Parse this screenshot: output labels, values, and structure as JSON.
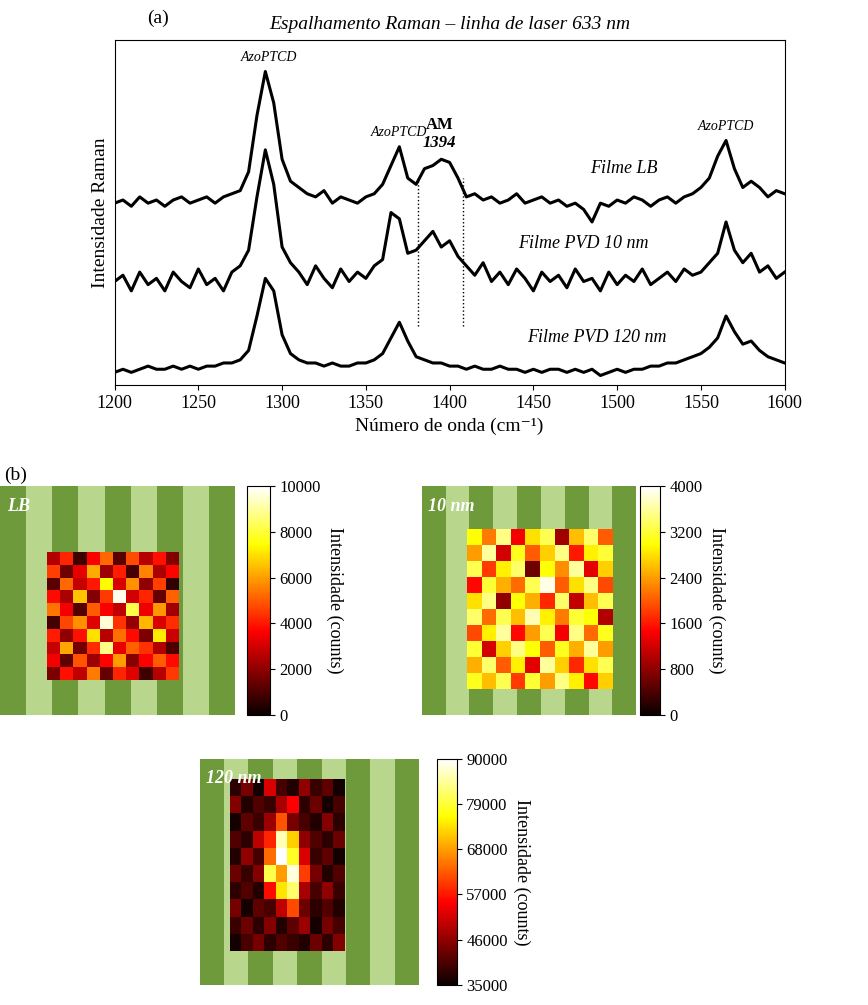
{
  "chart_data": [
    {
      "type": "line",
      "panel": "(a)",
      "title": "Espalhamento Raman – linha de laser 633 nm",
      "x_label": "Número de onda (cm⁻¹)",
      "y_label": "Intensidade Raman",
      "xlim": [
        1200,
        1600
      ],
      "xticks": [
        1200,
        1250,
        1300,
        1350,
        1400,
        1450,
        1500,
        1550,
        1600
      ],
      "ylim": [
        0,
        11
      ],
      "yticks": [],
      "tick_labels": "x",
      "grid": false,
      "x": [
        1200,
        1205,
        1210,
        1215,
        1220,
        1225,
        1230,
        1235,
        1240,
        1245,
        1250,
        1255,
        1260,
        1265,
        1270,
        1275,
        1280,
        1285,
        1290,
        1295,
        1300,
        1305,
        1310,
        1315,
        1320,
        1325,
        1330,
        1335,
        1340,
        1345,
        1350,
        1355,
        1360,
        1365,
        1370,
        1375,
        1380,
        1385,
        1390,
        1395,
        1400,
        1405,
        1410,
        1415,
        1420,
        1425,
        1430,
        1435,
        1440,
        1445,
        1450,
        1455,
        1460,
        1465,
        1470,
        1475,
        1480,
        1485,
        1490,
        1495,
        1500,
        1505,
        1510,
        1515,
        1520,
        1525,
        1530,
        1535,
        1540,
        1545,
        1550,
        1555,
        1560,
        1565,
        1570,
        1575,
        1580,
        1585,
        1590,
        1595,
        1600
      ],
      "series": [
        {
          "name": "Filme LB",
          "color": "#000000",
          "line_style": "solid",
          "values": [
            5.8,
            5.9,
            5.7,
            6.0,
            5.8,
            5.9,
            5.7,
            5.9,
            6.0,
            5.8,
            5.9,
            6.0,
            5.8,
            6.0,
            6.1,
            6.2,
            6.8,
            8.6,
            10.0,
            9.0,
            7.2,
            6.5,
            6.3,
            6.1,
            6.0,
            6.2,
            5.8,
            6.0,
            5.9,
            5.8,
            6.0,
            6.1,
            6.4,
            7.0,
            7.6,
            6.6,
            6.4,
            6.9,
            7.0,
            7.2,
            7.1,
            6.6,
            6.0,
            6.1,
            5.9,
            6.0,
            5.8,
            5.9,
            6.1,
            5.8,
            5.9,
            6.0,
            5.8,
            5.9,
            5.7,
            5.8,
            5.6,
            5.2,
            5.8,
            5.7,
            5.9,
            5.8,
            6.0,
            5.9,
            5.7,
            5.9,
            6.0,
            5.8,
            6.0,
            6.1,
            6.3,
            6.6,
            7.3,
            7.8,
            6.9,
            6.3,
            6.5,
            6.3,
            6.0,
            6.2,
            6.1
          ]
        },
        {
          "name": "Filme PVD 10 nm",
          "color": "#000000",
          "line_style": "solid",
          "values": [
            3.3,
            3.5,
            3.0,
            3.6,
            3.2,
            3.4,
            3.0,
            3.6,
            3.3,
            3.1,
            3.7,
            3.2,
            3.4,
            3.0,
            3.6,
            3.8,
            4.3,
            6.0,
            7.5,
            6.4,
            4.4,
            3.9,
            3.6,
            3.2,
            3.8,
            3.4,
            3.1,
            3.7,
            3.3,
            3.6,
            3.4,
            3.8,
            4.0,
            5.5,
            5.3,
            4.2,
            4.3,
            4.6,
            4.9,
            4.4,
            4.6,
            4.1,
            3.8,
            3.5,
            3.9,
            3.3,
            3.6,
            3.2,
            3.7,
            3.4,
            3.0,
            3.6,
            3.3,
            3.5,
            3.1,
            3.7,
            3.3,
            3.4,
            3.0,
            3.6,
            3.2,
            3.5,
            3.3,
            3.7,
            3.2,
            3.4,
            3.6,
            3.3,
            3.7,
            3.5,
            3.6,
            3.9,
            4.2,
            5.2,
            4.3,
            3.9,
            4.2,
            3.6,
            3.8,
            3.4,
            3.6
          ]
        },
        {
          "name": "Filme PVD 120 nm",
          "color": "#000000",
          "line_style": "solid",
          "values": [
            0.4,
            0.5,
            0.4,
            0.5,
            0.6,
            0.5,
            0.5,
            0.6,
            0.5,
            0.6,
            0.5,
            0.6,
            0.6,
            0.7,
            0.7,
            0.8,
            1.1,
            2.2,
            3.4,
            3.0,
            1.6,
            1.0,
            0.8,
            0.7,
            0.7,
            0.6,
            0.7,
            0.6,
            0.6,
            0.7,
            0.7,
            0.8,
            1.0,
            1.5,
            2.0,
            1.4,
            0.9,
            0.8,
            0.7,
            0.7,
            0.6,
            0.6,
            0.5,
            0.6,
            0.5,
            0.5,
            0.6,
            0.5,
            0.5,
            0.4,
            0.5,
            0.4,
            0.5,
            0.5,
            0.4,
            0.5,
            0.4,
            0.5,
            0.3,
            0.4,
            0.5,
            0.4,
            0.5,
            0.5,
            0.6,
            0.6,
            0.7,
            0.7,
            0.8,
            0.9,
            1.0,
            1.2,
            1.5,
            2.2,
            1.7,
            1.3,
            1.4,
            1.1,
            0.9,
            0.8,
            0.7
          ]
        }
      ],
      "annotations": [
        {
          "text": "AzoPTCD",
          "x": 1292
        },
        {
          "text": "AzoPTCD",
          "x": 1370
        },
        {
          "text": "AzoPTCD",
          "x": 1565
        },
        {
          "text": "1394",
          "x": 1394
        },
        {
          "text": "AM",
          "x": 1394
        }
      ],
      "band_lines": [
        1381,
        1408
      ]
    },
    {
      "type": "heatmap",
      "panel": "(b)",
      "title": "LB",
      "tick_labels": false,
      "cells": [
        [
          2500,
          4200,
          800,
          3600,
          5200,
          1200,
          4800,
          2600,
          3900,
          1800
        ],
        [
          4600,
          1500,
          3300,
          6200,
          2200,
          4100,
          900,
          5600,
          2400,
          3700
        ],
        [
          1200,
          5200,
          2800,
          4000,
          7400,
          3100,
          5800,
          2000,
          4600,
          600
        ],
        [
          3800,
          2400,
          6600,
          1800,
          4500,
          9800,
          3000,
          4200,
          1400,
          5100
        ],
        [
          5400,
          3500,
          1100,
          5000,
          3600,
          2700,
          8200,
          3400,
          5900,
          2300
        ],
        [
          900,
          4700,
          5800,
          3200,
          9600,
          4400,
          2100,
          6400,
          3100,
          4300
        ],
        [
          4100,
          2000,
          3900,
          7000,
          2600,
          5300,
          3800,
          1700,
          7200,
          2900
        ],
        [
          2800,
          6100,
          1600,
          4300,
          8800,
          3300,
          5100,
          4400,
          2500,
          1000
        ],
        [
          3500,
          1300,
          4900,
          2200,
          3700,
          6000,
          1900,
          3600,
          5000,
          3800
        ],
        [
          1700,
          3900,
          2700,
          5500,
          1400,
          4200,
          3200,
          800,
          2600,
          4500
        ]
      ],
      "colorbar": {
        "range": [
          0,
          10000
        ],
        "ticks": [
          0,
          2000,
          4000,
          6000,
          8000,
          10000
        ],
        "label": "Intensidade (counts)"
      }
    },
    {
      "type": "heatmap",
      "title": "10 nm",
      "tick_labels": false,
      "cells": [
        [
          3000,
          2200,
          3500,
          1400,
          2800,
          3300,
          900,
          2600,
          3400,
          2000
        ],
        [
          2400,
          3600,
          1200,
          3100,
          2000,
          2700,
          3500,
          1600,
          2900,
          3200
        ],
        [
          3300,
          1800,
          2900,
          3400,
          600,
          3000,
          2300,
          3600,
          1300,
          2700
        ],
        [
          1500,
          3200,
          2500,
          2100,
          3300,
          3900,
          2000,
          2800,
          3500,
          1900
        ],
        [
          2800,
          3500,
          800,
          3000,
          2500,
          1700,
          3400,
          1100,
          2600,
          3300
        ],
        [
          3400,
          2100,
          3300,
          2600,
          3700,
          2900,
          2200,
          3200,
          3000,
          1000
        ],
        [
          1900,
          2900,
          3600,
          1500,
          2400,
          3300,
          1400,
          3500,
          2100,
          3100
        ],
        [
          3200,
          1200,
          2700,
          3500,
          3000,
          2000,
          3100,
          2500,
          3600,
          2400
        ],
        [
          2500,
          3400,
          2000,
          2900,
          1300,
          3600,
          2700,
          1700,
          2800,
          3300
        ],
        [
          3100,
          2600,
          3300,
          1800,
          3200,
          2400,
          3500,
          2900,
          1500,
          2700
        ]
      ],
      "colorbar": {
        "range": [
          0,
          4000
        ],
        "ticks": [
          0,
          800,
          1600,
          2400,
          3200,
          4000
        ],
        "label": "Intensidade (counts)"
      }
    },
    {
      "type": "heatmap",
      "title": "120 nm",
      "tick_labels": false,
      "cells": [
        [
          38000,
          44000,
          36000,
          52000,
          40000,
          37000,
          46000,
          39000,
          42000,
          36000
        ],
        [
          45000,
          37000,
          41000,
          39000,
          48000,
          55000,
          38000,
          43000,
          36000,
          40000
        ],
        [
          36000,
          42000,
          39000,
          47000,
          62000,
          44000,
          40000,
          37000,
          45000,
          38000
        ],
        [
          41000,
          38000,
          50000,
          58000,
          86000,
          72000,
          46000,
          41000,
          38000,
          43000
        ],
        [
          37000,
          46000,
          40000,
          64000,
          90000,
          78000,
          52000,
          39000,
          42000,
          36000
        ],
        [
          43000,
          39000,
          45000,
          80000,
          68000,
          88000,
          60000,
          44000,
          37000,
          41000
        ],
        [
          38000,
          41000,
          37000,
          56000,
          74000,
          82000,
          48000,
          40000,
          46000,
          39000
        ],
        [
          44000,
          36000,
          42000,
          40000,
          50000,
          61000,
          43000,
          38000,
          41000,
          37000
        ],
        [
          39000,
          43000,
          38000,
          45000,
          37000,
          42000,
          47000,
          36000,
          44000,
          40000
        ],
        [
          36000,
          40000,
          44000,
          38000,
          41000,
          39000,
          37000,
          43000,
          38000,
          45000
        ]
      ],
      "colorbar": {
        "range": [
          35000,
          90000
        ],
        "ticks": [
          35000,
          46000,
          57000,
          68000,
          79000,
          90000
        ],
        "label": "Intensidade (counts)"
      }
    }
  ]
}
